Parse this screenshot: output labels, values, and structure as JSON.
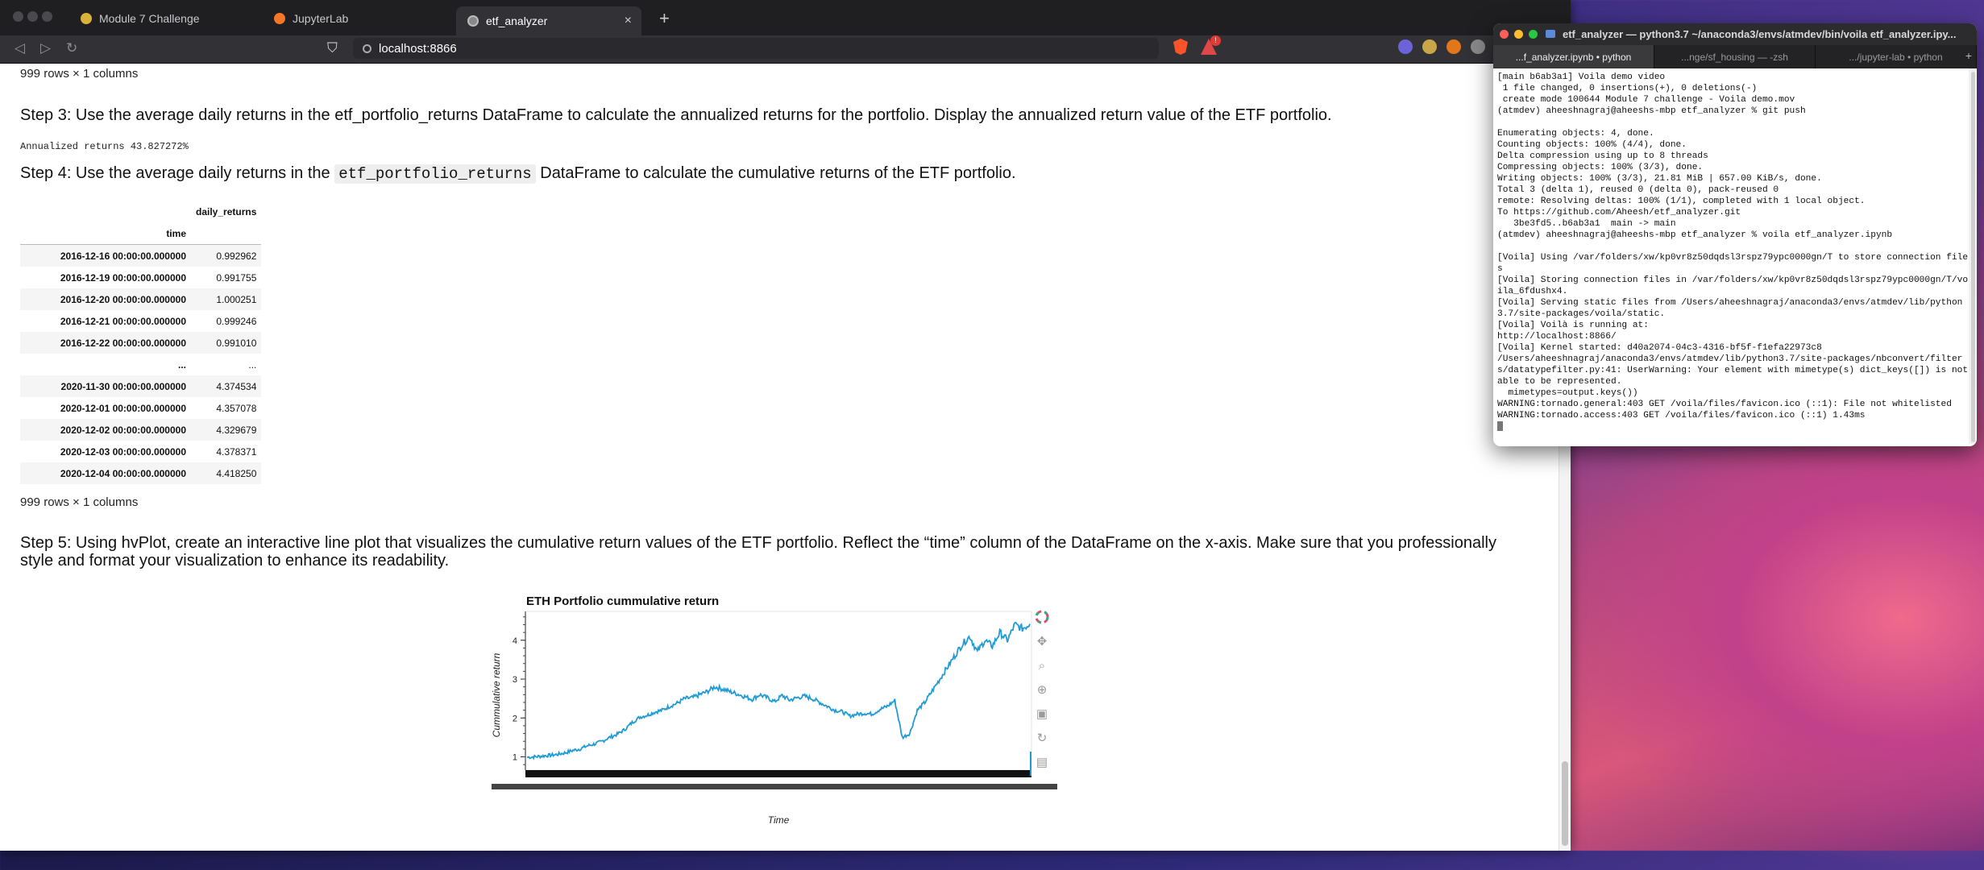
{
  "browser": {
    "tabs": [
      {
        "label": "Module 7 Challenge",
        "icon": "github-icon"
      },
      {
        "label": "JupyterLab",
        "icon": "jupyter-icon"
      },
      {
        "label": "etf_analyzer",
        "icon": "globe-icon"
      }
    ],
    "url": "localhost:8866"
  },
  "notebook": {
    "rows_note_top": "999 rows × 1 columns",
    "step3": "Step 3: Use the average daily returns in the etf_portfolio_returns DataFrame to calculate the annualized returns for the portfolio. Display the annualized return value of the ETF portfolio.",
    "annualized": "Annualized returns 43.827272%",
    "step4_before": "Step 4: Use the average daily returns in the ",
    "step4_code": "etf_portfolio_returns",
    "step4_after": " DataFrame to calculate the cumulative returns of the ETF portfolio.",
    "table": {
      "column": "daily_returns",
      "index_name": "time",
      "rows": [
        {
          "time": "2016-12-16 00:00:00.000000",
          "value": "0.992962"
        },
        {
          "time": "2016-12-19 00:00:00.000000",
          "value": "0.991755"
        },
        {
          "time": "2016-12-20 00:00:00.000000",
          "value": "1.000251"
        },
        {
          "time": "2016-12-21 00:00:00.000000",
          "value": "0.999246"
        },
        {
          "time": "2016-12-22 00:00:00.000000",
          "value": "0.991010"
        },
        {
          "time": "...",
          "value": "..."
        },
        {
          "time": "2020-11-30 00:00:00.000000",
          "value": "4.374534"
        },
        {
          "time": "2020-12-01 00:00:00.000000",
          "value": "4.357078"
        },
        {
          "time": "2020-12-02 00:00:00.000000",
          "value": "4.329679"
        },
        {
          "time": "2020-12-03 00:00:00.000000",
          "value": "4.378371"
        },
        {
          "time": "2020-12-04 00:00:00.000000",
          "value": "4.418250"
        }
      ]
    },
    "rows_note_bottom": "999 rows × 1 columns",
    "step5_line1": "Step 5: Using hvPlot, create an interactive line plot that visualizes the cumulative return values of the ETF portfolio. Reflect the “time” column of the DataFrame on the x-axis. Make sure that you professionally",
    "step5_line2": "style and format your visualization to enhance its readability."
  },
  "chart_data": {
    "type": "line",
    "title": "ETH Portfolio cummulative return",
    "xlabel": "Time",
    "ylabel": "Cummulative return",
    "yticks": [
      1,
      2,
      3,
      4
    ],
    "ylim": [
      0.7,
      4.7
    ],
    "x_range": [
      "2016-12-16",
      "2020-12-04"
    ],
    "line_color": "#1f9bd6",
    "series": [
      {
        "values": [
          0.99,
          1.0,
          1.02,
          1.04,
          1.06,
          1.1,
          1.16,
          1.2,
          1.28,
          1.33,
          1.4,
          1.5,
          1.58,
          1.7,
          1.88,
          2.02,
          2.07,
          2.15,
          2.2,
          2.3,
          2.38,
          2.5,
          2.52,
          2.6,
          2.68,
          2.8,
          2.75,
          2.68,
          2.62,
          2.55,
          2.48,
          2.6,
          2.52,
          2.42,
          2.58,
          2.46,
          2.52,
          2.56,
          2.5,
          2.4,
          2.3,
          2.2,
          2.16,
          2.05,
          2.1,
          2.12,
          2.1,
          2.22,
          2.3,
          2.45,
          1.5,
          1.6,
          2.2,
          2.4,
          2.7,
          3.0,
          3.3,
          3.6,
          3.9,
          4.1,
          3.7,
          4.0,
          3.85,
          4.2,
          4.0,
          4.4,
          4.3,
          4.42
        ]
      }
    ]
  },
  "terminal": {
    "title": "etf_analyzer — python3.7 ~/anaconda3/envs/atmdev/bin/voila etf_analyzer.ipy...",
    "tabs": [
      "...f_analyzer.ipynb • python",
      "...nge/sf_housing — -zsh",
      ".../jupyter-lab • python"
    ],
    "lines": [
      "[main b6ab3a1] Voila demo video",
      " 1 file changed, 0 insertions(+), 0 deletions(-)",
      " create mode 100644 Module 7 challenge - Voila demo.mov",
      "(atmdev) aheeshnagraj@aheeshs-mbp etf_analyzer % git push",
      "",
      "Enumerating objects: 4, done.",
      "Counting objects: 100% (4/4), done.",
      "Delta compression using up to 8 threads",
      "Compressing objects: 100% (3/3), done.",
      "Writing objects: 100% (3/3), 21.81 MiB | 657.00 KiB/s, done.",
      "Total 3 (delta 1), reused 0 (delta 0), pack-reused 0",
      "remote: Resolving deltas: 100% (1/1), completed with 1 local object.",
      "To https://github.com/Aheesh/etf_analyzer.git",
      "   3be3fd5..b6ab3a1  main -> main",
      "(atmdev) aheeshnagraj@aheeshs-mbp etf_analyzer % voila etf_analyzer.ipynb",
      "",
      "[Voila] Using /var/folders/xw/kp0vr8z50dqdsl3rspz79ypc0000gn/T to store connection files",
      "[Voila] Storing connection files in /var/folders/xw/kp0vr8z50dqdsl3rspz79ypc0000gn/T/voila_6fdushx4.",
      "[Voila] Serving static files from /Users/aheeshnagraj/anaconda3/envs/atmdev/lib/python3.7/site-packages/voila/static.",
      "[Voila] Voilà is running at:",
      "http://localhost:8866/",
      "[Voila] Kernel started: d40a2074-04c3-4316-bf5f-f1efa22973c8",
      "/Users/aheeshnagraj/anaconda3/envs/atmdev/lib/python3.7/site-packages/nbconvert/filters/datatypefilter.py:41: UserWarning: Your element with mimetype(s) dict_keys([]) is not able to be represented.",
      "  mimetypes=output.keys())",
      "WARNING:tornado.general:403 GET /voila/files/favicon.ico (::1): File not whitelisted",
      "WARNING:tornado.access:403 GET /voila/files/favicon.ico (::1) 1.43ms"
    ]
  }
}
